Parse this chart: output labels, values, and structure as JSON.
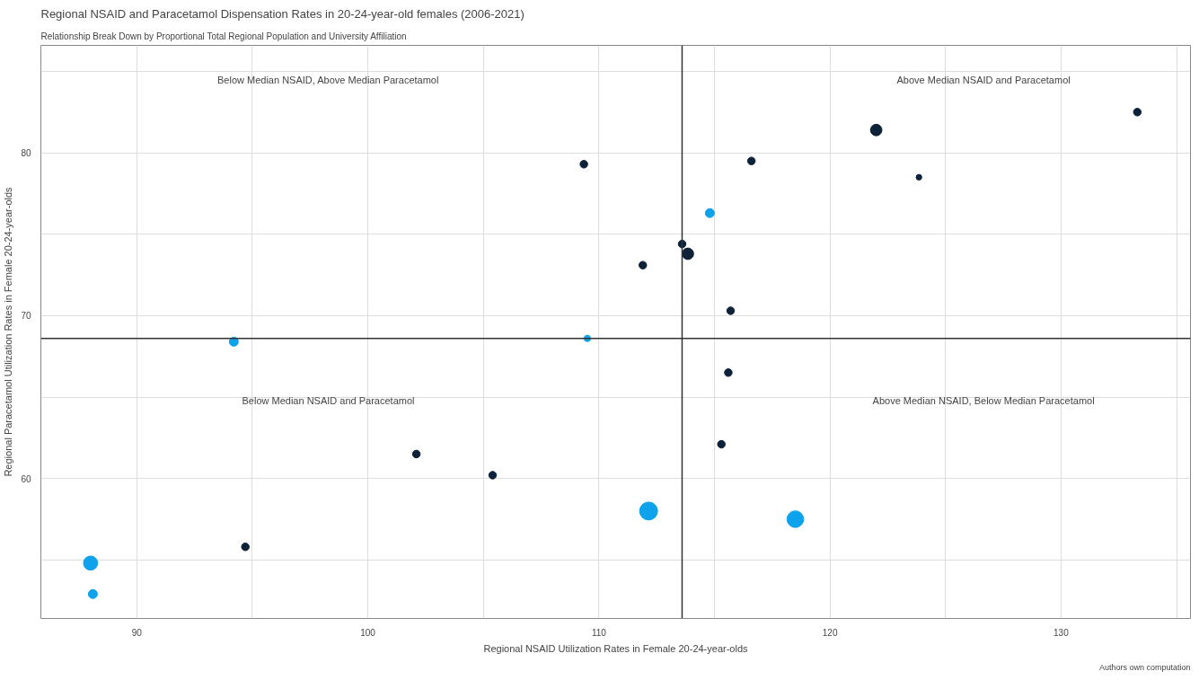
{
  "chart_data": {
    "type": "bubble",
    "title": "Regional NSAID and Paracetamol Dispensation Rates in 20-24-year-old females (2006-2021)",
    "subtitle": "Relationship Break Down by Proportional Total Regional Population and University Affiliation",
    "xlabel": "Regional NSAID Utilization Rates in Female 20-24-year-olds",
    "ylabel": "Regional Paracetamol Utilization Rates in Female 20-24-year-olds",
    "annotations": [
      "Below Median NSAID, Above Median Paracetamol",
      "Above Median NSAID and Paracetamol",
      "Below Median NSAID and Paracetamol",
      "Above Median NSAID, Below Median Paracetamol",
      "Authors own computation"
    ],
    "series": [
      {
        "color": "#0d2239",
        "x": [
          109.35,
          116.6,
          122.0,
          123.85,
          133.3,
          113.6,
          113.85,
          111.9,
          115.7,
          115.6,
          115.3,
          102.1,
          105.4,
          94.7
        ],
        "values": [
          79.3,
          79.5,
          81.4,
          78.5,
          82.5,
          74.4,
          73.8,
          73.1,
          70.3,
          66.5,
          62.1,
          61.5,
          60.2,
          55.8
        ],
        "sizes": [
          0.18,
          0.18,
          0.41,
          0.1,
          0.18,
          0.18,
          0.41,
          0.18,
          0.18,
          0.18,
          0.18,
          0.18,
          0.18,
          0.18
        ]
      },
      {
        "color": "#0ea2ec",
        "x": [
          114.8,
          109.5,
          94.2,
          112.15,
          118.5,
          88.0,
          88.1
        ],
        "values": [
          76.3,
          68.6,
          68.4,
          58.0,
          57.5,
          54.8,
          52.9
        ],
        "sizes": [
          0.25,
          0.13,
          0.25,
          1,
          0.86,
          0.62,
          0.25
        ]
      }
    ],
    "ref_lines": [
      {
        "axis": "x",
        "value": 113.6,
        "color": "#333333"
      },
      {
        "axis": "y",
        "value": 68.6,
        "color": "#333333"
      }
    ],
    "xlim": [
      85.85,
      135.6
    ],
    "ylim": [
      51.4,
      86.6
    ],
    "xticks": [
      90,
      {
        "value": 95,
        "label": null
      },
      100,
      {
        "value": 105,
        "label": null
      },
      110,
      {
        "value": 115,
        "label": null
      },
      120,
      {
        "value": 125,
        "label": null
      },
      130,
      {
        "value": 135,
        "label": null
      }
    ],
    "yticks": [
      {
        "value": 55,
        "label": null
      },
      60,
      {
        "value": 65,
        "label": null
      },
      70,
      {
        "value": 75,
        "label": null
      },
      80,
      {
        "value": 85,
        "label": null
      }
    ],
    "grid": true,
    "marker": "circle"
  }
}
